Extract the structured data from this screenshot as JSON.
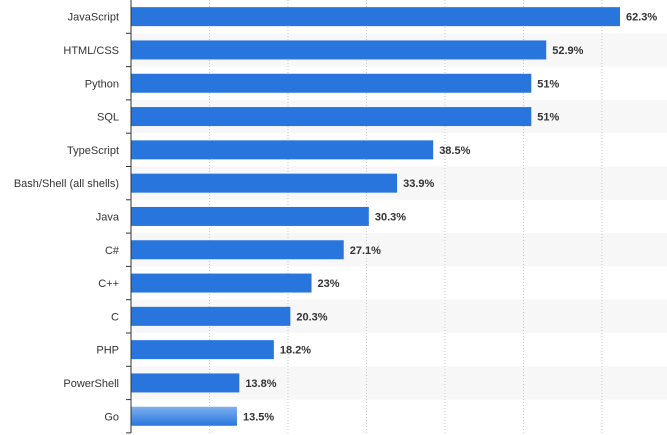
{
  "chart_data": {
    "type": "bar",
    "orientation": "horizontal",
    "title": "",
    "xlabel": "",
    "ylabel": "",
    "categories": [
      "JavaScript",
      "HTML/CSS",
      "Python",
      "SQL",
      "TypeScript",
      "Bash/Shell (all shells)",
      "Java",
      "C#",
      "C++",
      "C",
      "PHP",
      "PowerShell",
      "Go"
    ],
    "values": [
      62.3,
      52.9,
      51,
      51,
      38.5,
      33.9,
      30.3,
      27.1,
      23,
      20.3,
      18.2,
      13.8,
      13.5
    ],
    "value_labels": [
      "62.3%",
      "52.9%",
      "51%",
      "51%",
      "38.5%",
      "33.9%",
      "30.3%",
      "27.1%",
      "23%",
      "20.3%",
      "18.2%",
      "13.8%",
      "13.5%"
    ],
    "xlim": [
      0,
      70
    ],
    "grid": true,
    "legend": "none",
    "colors": {
      "bar": "#2876dd",
      "bar_fade": "#7eb0ee",
      "row_alt": "#f7f7f7",
      "grid": "#c8c8c8",
      "axis": "#333333",
      "text": "#333333"
    }
  }
}
